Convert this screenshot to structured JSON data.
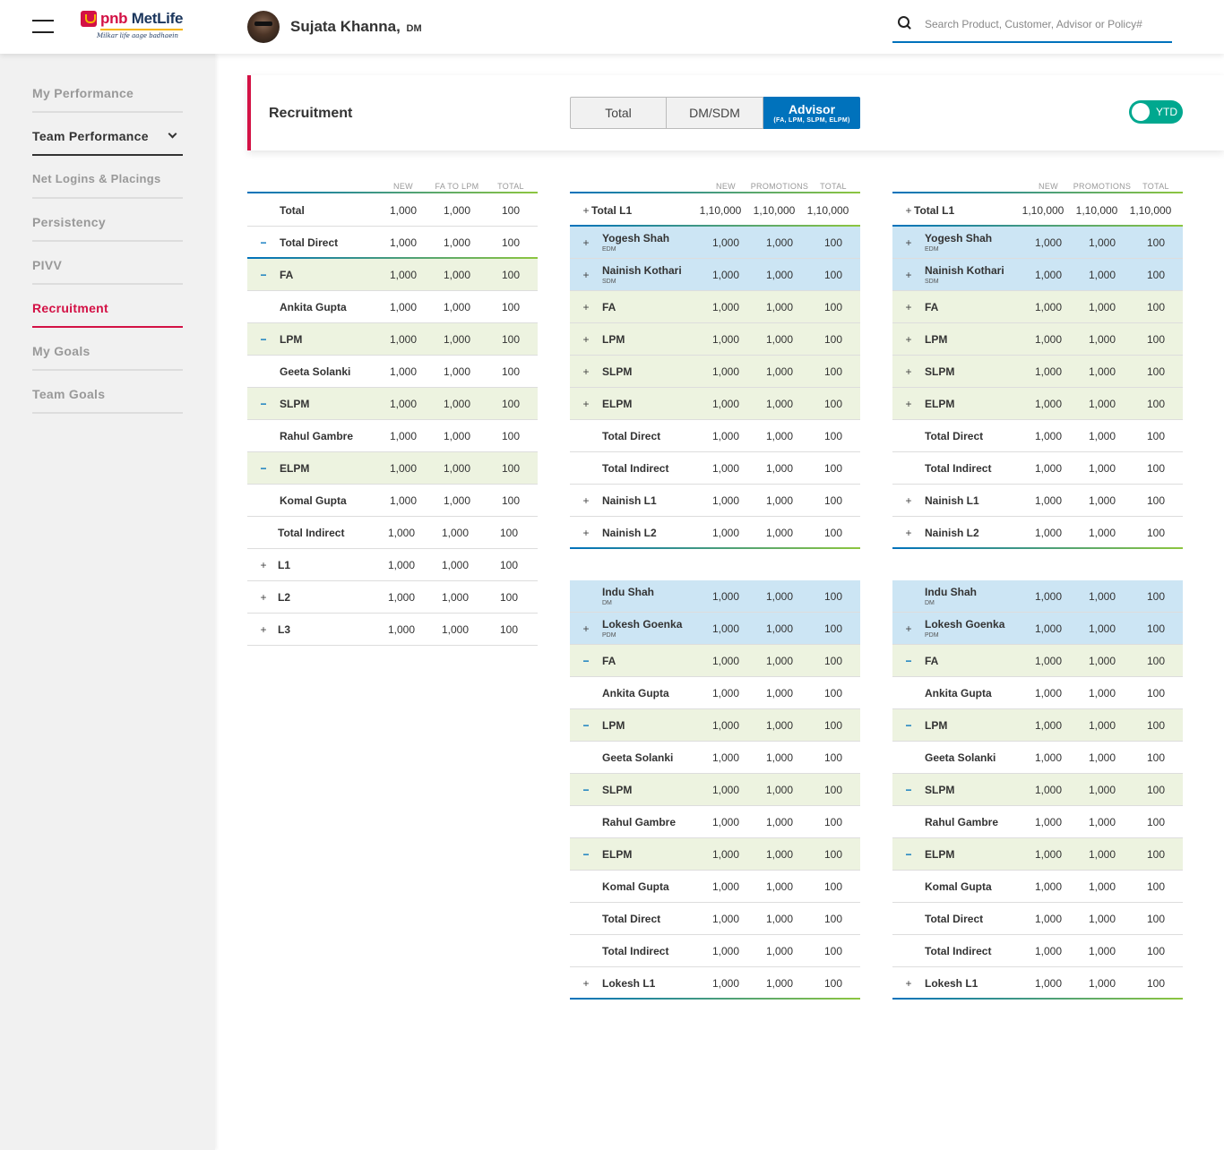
{
  "header": {
    "brand_pnb": "pnb",
    "brand_metlife": "MetLife",
    "brand_tagline": "Milkar life aage badhaein",
    "user_name": "Sujata Khanna,",
    "user_role": "DM",
    "search_placeholder": "Search Product, Customer, Advisor or Policy#"
  },
  "sidebar": {
    "items": [
      {
        "label": "My Performance"
      },
      {
        "label": "Team Performance"
      },
      {
        "label": "Net Logins & Placings"
      },
      {
        "label": "Persistency"
      },
      {
        "label": "PIVV"
      },
      {
        "label": "Recruitment"
      },
      {
        "label": "My Goals"
      },
      {
        "label": "Team Goals"
      }
    ]
  },
  "recruitment": {
    "title": "Recruitment",
    "tabs": [
      {
        "label": "Total"
      },
      {
        "label": "DM/SDM"
      },
      {
        "label": "Advisor",
        "sub": "(FA, LPM, SLPM, ELPM)"
      }
    ],
    "toggle_label": "YTD"
  },
  "colors": {
    "accent": "#d31145",
    "primary": "#0072bc",
    "teal": "#00a88f",
    "green_row": "#edf3e0",
    "blue_row": "#cce5f4"
  },
  "table1": {
    "headers": [
      "NEW",
      "FA TO LPM",
      "TOTAL"
    ],
    "rows": [
      {
        "icon": "",
        "label": "Total",
        "v": [
          "1,000",
          "1,000",
          "100"
        ]
      },
      {
        "icon": "−",
        "label": "Total Direct",
        "v": [
          "1,000",
          "1,000",
          "100"
        ]
      },
      {
        "icon": "−",
        "label": "FA",
        "v": [
          "1,000",
          "1,000",
          "100"
        ]
      },
      {
        "icon": "",
        "label": "Ankita Gupta",
        "v": [
          "1,000",
          "1,000",
          "100"
        ]
      },
      {
        "icon": "−",
        "label": "LPM",
        "v": [
          "1,000",
          "1,000",
          "100"
        ]
      },
      {
        "icon": "",
        "label": "Geeta Solanki",
        "v": [
          "1,000",
          "1,000",
          "100"
        ]
      },
      {
        "icon": "−",
        "label": "SLPM",
        "v": [
          "1,000",
          "1,000",
          "100"
        ]
      },
      {
        "icon": "",
        "label": "Rahul Gambre",
        "v": [
          "1,000",
          "1,000",
          "100"
        ]
      },
      {
        "icon": "−",
        "label": "ELPM",
        "v": [
          "1,000",
          "1,000",
          "100"
        ]
      },
      {
        "icon": "",
        "label": "Komal Gupta",
        "v": [
          "1,000",
          "1,000",
          "100"
        ]
      },
      {
        "icon": "",
        "label": "Total Indirect",
        "v": [
          "1,000",
          "1,000",
          "100"
        ]
      },
      {
        "icon": "+",
        "label": "L1",
        "v": [
          "1,000",
          "1,000",
          "100"
        ]
      },
      {
        "icon": "+",
        "label": "L2",
        "v": [
          "1,000",
          "1,000",
          "100"
        ]
      },
      {
        "icon": "+",
        "label": "L3",
        "v": [
          "1,000",
          "1,000",
          "100"
        ]
      }
    ]
  },
  "table2": {
    "headers": [
      "NEW",
      "PROMOTIONS",
      "TOTAL"
    ],
    "rows": [
      {
        "icon": "+",
        "label": "Total L1",
        "v": [
          "1,10,000",
          "1,10,000",
          "1,10,000"
        ]
      },
      {
        "icon": "+",
        "label": "Yogesh Shah",
        "sub": "EDM",
        "v": [
          "1,000",
          "1,000",
          "100"
        ]
      },
      {
        "icon": "+",
        "label": "Nainish Kothari",
        "sub": "SDM",
        "v": [
          "1,000",
          "1,000",
          "100"
        ]
      },
      {
        "icon": "+",
        "label": "FA",
        "v": [
          "1,000",
          "1,000",
          "100"
        ]
      },
      {
        "icon": "+",
        "label": "LPM",
        "v": [
          "1,000",
          "1,000",
          "100"
        ]
      },
      {
        "icon": "+",
        "label": "SLPM",
        "v": [
          "1,000",
          "1,000",
          "100"
        ]
      },
      {
        "icon": "+",
        "label": "ELPM",
        "v": [
          "1,000",
          "1,000",
          "100"
        ]
      },
      {
        "icon": "",
        "label": "Total Direct",
        "v": [
          "1,000",
          "1,000",
          "100"
        ]
      },
      {
        "icon": "",
        "label": "Total Indirect",
        "v": [
          "1,000",
          "1,000",
          "100"
        ]
      },
      {
        "icon": "+",
        "label": "Nainish L1",
        "v": [
          "1,000",
          "1,000",
          "100"
        ]
      },
      {
        "icon": "+",
        "label": "Nainish L2",
        "v": [
          "1,000",
          "1,000",
          "100"
        ]
      }
    ]
  },
  "table3": {
    "rows": [
      {
        "icon": "",
        "label": "Indu Shah",
        "sub": "DM",
        "v": [
          "1,000",
          "1,000",
          "100"
        ]
      },
      {
        "icon": "+",
        "label": "Lokesh Goenka",
        "sub": "PDM",
        "v": [
          "1,000",
          "1,000",
          "100"
        ]
      },
      {
        "icon": "−",
        "label": "FA",
        "v": [
          "1,000",
          "1,000",
          "100"
        ]
      },
      {
        "icon": "",
        "label": "Ankita Gupta",
        "v": [
          "1,000",
          "1,000",
          "100"
        ]
      },
      {
        "icon": "−",
        "label": "LPM",
        "v": [
          "1,000",
          "1,000",
          "100"
        ]
      },
      {
        "icon": "",
        "label": "Geeta Solanki",
        "v": [
          "1,000",
          "1,000",
          "100"
        ]
      },
      {
        "icon": "−",
        "label": "SLPM",
        "v": [
          "1,000",
          "1,000",
          "100"
        ]
      },
      {
        "icon": "",
        "label": "Rahul Gambre",
        "v": [
          "1,000",
          "1,000",
          "100"
        ]
      },
      {
        "icon": "−",
        "label": "ELPM",
        "v": [
          "1,000",
          "1,000",
          "100"
        ]
      },
      {
        "icon": "",
        "label": "Komal Gupta",
        "v": [
          "1,000",
          "1,000",
          "100"
        ]
      },
      {
        "icon": "",
        "label": "Total Direct",
        "v": [
          "1,000",
          "1,000",
          "100"
        ]
      },
      {
        "icon": "",
        "label": "Total Indirect",
        "v": [
          "1,000",
          "1,000",
          "100"
        ]
      },
      {
        "icon": "+",
        "label": "Lokesh L1",
        "v": [
          "1,000",
          "1,000",
          "100"
        ]
      }
    ]
  }
}
